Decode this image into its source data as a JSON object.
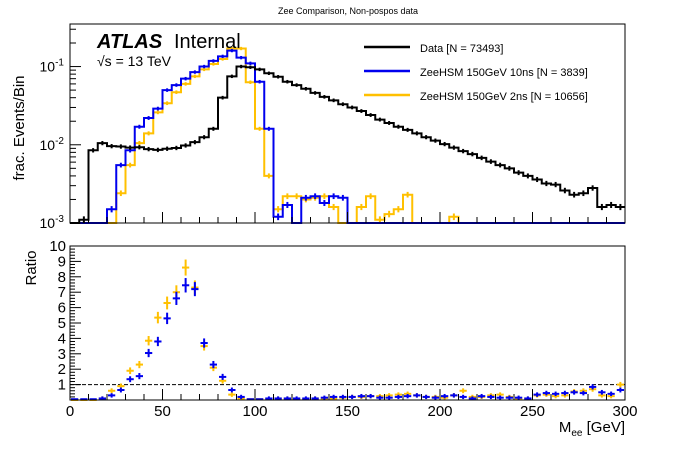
{
  "chart_data": [
    {
      "panel": "upper",
      "type": "line",
      "style": "step-histogram",
      "title": "Zee Comparison, Non-pospos data",
      "xlabel": "",
      "ylabel": "frac. Events/Bin",
      "yscale": "log",
      "xlim": [
        0,
        300
      ],
      "ylim": [
        0.001,
        0.35
      ],
      "y_tick_labels": [
        "10^{-3}",
        "10^{-2}",
        "10^{-1}"
      ],
      "y_ticks": [
        0.001,
        0.01,
        0.1
      ],
      "bin_width": 5,
      "legend_position": "top-right",
      "annotations": {
        "experiment": "ATLAS",
        "status": "Internal",
        "energy": "√s = 13 TeV"
      },
      "series": [
        {
          "name": "Data [N = 73493]",
          "color": "#000000",
          "values": [
            0.0009,
            0.0011,
            0.0085,
            0.0105,
            0.0096,
            0.0095,
            0.0092,
            0.0093,
            0.0088,
            0.0086,
            0.0089,
            0.0091,
            0.0098,
            0.0108,
            0.0125,
            0.016,
            0.04,
            0.075,
            0.1,
            0.098,
            0.092,
            0.082,
            0.074,
            0.064,
            0.058,
            0.052,
            0.046,
            0.041,
            0.037,
            0.033,
            0.03,
            0.027,
            0.024,
            0.021,
            0.019,
            0.017,
            0.0155,
            0.014,
            0.0125,
            0.0113,
            0.0102,
            0.0092,
            0.0083,
            0.0076,
            0.0068,
            0.0061,
            0.0055,
            0.005,
            0.0044,
            0.004,
            0.0036,
            0.0032,
            0.0031,
            0.0026,
            0.0023,
            0.0024,
            0.0028,
            0.0016,
            0.0017,
            0.0016
          ]
        },
        {
          "name": "ZeeHSM 150GeV 10ns [N = 3839]",
          "color": "#0000ee",
          "values": [
            0,
            0,
            0,
            0.0008,
            0.0015,
            0.0055,
            0.0085,
            0.017,
            0.022,
            0.029,
            0.05,
            0.058,
            0.07,
            0.085,
            0.1,
            0.118,
            0.135,
            0.16,
            0.13,
            0.11,
            0.064,
            0.016,
            0.0012,
            0.0017,
            0.0009,
            0.0021,
            0.0022,
            0.0018,
            0.0022,
            0.0021,
            0.0004,
            0.0006,
            0.0007,
            0.0003,
            0.0008,
            0.0005,
            0.0004,
            0.0009,
            0.0004,
            0.0004,
            0.0003,
            0.0003,
            0.0007,
            0.0006,
            0.0003,
            0.0002,
            0.0003,
            0.0003,
            0.0003,
            0.0002,
            0.0002,
            0.0001,
            0.0004,
            0.0001,
            0.0001,
            0.0001,
            0.0003,
            0.0001,
            0.0001,
            0.0001
          ]
        },
        {
          "name": "ZeeHSM 150GeV 2ns [N = 10656]",
          "color": "#ffc000",
          "values": [
            0,
            0,
            0,
            0.0007,
            0.0009,
            0.0024,
            0.0055,
            0.0105,
            0.014,
            0.026,
            0.034,
            0.047,
            0.06,
            0.075,
            0.092,
            0.108,
            0.125,
            0.17,
            0.17,
            0.063,
            0.016,
            0.004,
            0.0015,
            0.0022,
            0.0022,
            0.002,
            0.0021,
            0.0022,
            0.0016,
            0.001,
            0.0007,
            0.0016,
            0.0022,
            0.0011,
            0.0013,
            0.0015,
            0.0023,
            0.0008,
            0.0003,
            0.001,
            0.0004,
            0.0012,
            0.001,
            0.0004,
            0.0002,
            0.0003,
            0.0003,
            0.0004,
            0.0002,
            0.0003,
            0.0003,
            0.0002,
            0.0002,
            0.0003,
            0.0002,
            0.0002,
            0.0001,
            0.0002,
            0.0001,
            0.0002
          ]
        }
      ]
    },
    {
      "panel": "lower",
      "type": "scatter",
      "style": "points-with-error-bars",
      "xlabel": "M_{ee} [GeV]",
      "ylabel": "Ratio",
      "xlim": [
        0,
        300
      ],
      "ylim": [
        0,
        10
      ],
      "x_ticks": [
        0,
        50,
        100,
        150,
        200,
        250,
        300
      ],
      "y_ticks": [
        1,
        2,
        3,
        4,
        5,
        6,
        7,
        8,
        9,
        10
      ],
      "reference_line": 1,
      "bin_width": 5,
      "series": [
        {
          "name": "ZeeHSM 150GeV 10ns / Data",
          "color": "#0000ee",
          "values": [
            0.05,
            0.05,
            0.05,
            0.1,
            0.3,
            0.65,
            1.35,
            1.55,
            3.05,
            3.8,
            5.3,
            6.6,
            7.45,
            7.2,
            3.7,
            2.3,
            1.5,
            0.65,
            0.2,
            0.05,
            0.05,
            0.1,
            0.1,
            0.1,
            0.1,
            0.1,
            0.1,
            0.15,
            0.2,
            0.2,
            0.2,
            0.25,
            0.25,
            0.15,
            0.15,
            0.2,
            0.25,
            0.3,
            0.2,
            0.15,
            0.25,
            0.3,
            0.2,
            0.1,
            0.25,
            0.2,
            0.15,
            0.15,
            0.15,
            0.1,
            0.35,
            0.45,
            0.4,
            0.45,
            0.5,
            0.45,
            0.85,
            0.5,
            0.4,
            0.65
          ]
        },
        {
          "name": "ZeeHSM 150GeV 2ns / Data",
          "color": "#ffc000",
          "values": [
            0.0,
            0.0,
            0.0,
            0.1,
            0.6,
            0.9,
            1.9,
            2.3,
            3.85,
            5.35,
            6.3,
            7.0,
            8.6,
            7.3,
            3.5,
            2.1,
            1.25,
            0.35,
            0.1,
            0.05,
            0.05,
            0.05,
            0.1,
            0.1,
            0.05,
            0.05,
            0.1,
            0.1,
            0.1,
            0.15,
            0.2,
            0.2,
            0.25,
            0.25,
            0.3,
            0.35,
            0.4,
            0.3,
            0.2,
            0.2,
            0.15,
            0.3,
            0.6,
            0.2,
            0.2,
            0.3,
            0.35,
            0.2,
            0.1,
            0.1,
            0.3,
            0.35,
            0.25,
            0.3,
            0.55,
            0.6,
            0.7,
            0.3,
            0.25,
            1.0
          ]
        }
      ]
    }
  ]
}
